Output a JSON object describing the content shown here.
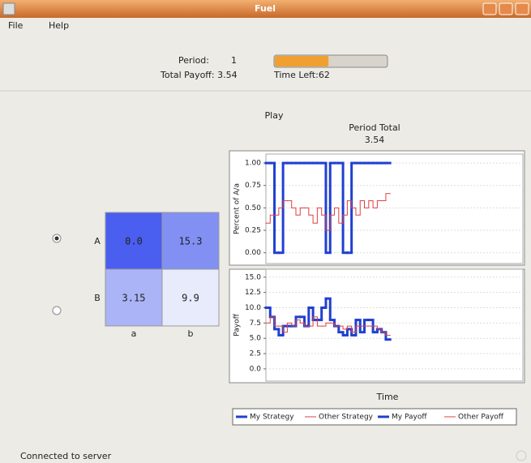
{
  "window": {
    "title": "Fuel"
  },
  "menu": [
    "File",
    "Help"
  ],
  "status": {
    "period_label": "Period:",
    "period": "1",
    "total_payoff": "Total Payoff: 3.54",
    "time_left": "Time Left:62",
    "progress": 0.48,
    "progress_color": "#f0a030"
  },
  "play": {
    "title": "Play",
    "period_total_label": "Period Total",
    "period_total": "3.54"
  },
  "matrix": {
    "rows": [
      "A",
      "B"
    ],
    "columns": [
      "a",
      "b"
    ],
    "cells": [
      [
        "0.0",
        "15.3"
      ],
      [
        "3.15",
        "9.9"
      ]
    ],
    "colors": [
      [
        "#4a5ef0",
        "#8290f4"
      ],
      [
        "#aab4f6",
        "#e8ebfc"
      ]
    ],
    "selected_row": 0
  },
  "chart_data": [
    {
      "type": "line",
      "step": true,
      "y_label": "Percent of A/a",
      "x": [
        0,
        2,
        4,
        6,
        8,
        10,
        12,
        14,
        16,
        18,
        20,
        22,
        24,
        26,
        28,
        30,
        32,
        34,
        36,
        38,
        40,
        42,
        44,
        46,
        48,
        50,
        52,
        54,
        56
      ],
      "xlim": [
        0,
        120
      ],
      "ylim": [
        -0.12,
        1.1
      ],
      "grid": true,
      "yticks": [
        {
          "value": 0,
          "label": "0.00"
        },
        {
          "value": 0.25,
          "label": "0.25"
        },
        {
          "value": 0.5,
          "label": "0.50"
        },
        {
          "value": 0.75,
          "label": "0.75"
        },
        {
          "value": 1,
          "label": "1.00"
        }
      ],
      "series": [
        {
          "name": "My Strategy",
          "color": "#2040d0",
          "width": 3,
          "values": [
            1,
            1,
            0,
            0,
            1,
            1,
            1,
            1,
            1,
            1,
            1,
            1,
            1,
            1,
            0,
            1,
            1,
            1,
            0,
            0,
            1,
            1,
            1,
            1,
            1,
            1,
            1,
            1,
            1
          ]
        },
        {
          "name": "Other Strategy",
          "color": "#e04040",
          "width": 1,
          "values": [
            0.33,
            0.42,
            0.42,
            0.5,
            0.58,
            0.58,
            0.5,
            0.42,
            0.5,
            0.5,
            0.42,
            0.33,
            0.5,
            0.42,
            0.25,
            0.42,
            0.5,
            0.33,
            0.42,
            0.58,
            0.5,
            0.42,
            0.58,
            0.5,
            0.58,
            0.5,
            0.58,
            0.58,
            0.66
          ]
        }
      ]
    },
    {
      "type": "line",
      "step": true,
      "y_label": "Payoff",
      "x_label": "Time",
      "x": [
        0,
        2,
        4,
        6,
        8,
        10,
        12,
        14,
        16,
        18,
        20,
        22,
        24,
        26,
        28,
        30,
        32,
        34,
        36,
        38,
        40,
        42,
        44,
        46,
        48,
        50,
        52,
        54,
        56
      ],
      "xlim": [
        0,
        120
      ],
      "ylim": [
        -2,
        16.3
      ],
      "grid": true,
      "yticks": [
        {
          "value": 0,
          "label": "0.0"
        },
        {
          "value": 2.5,
          "label": "2.5"
        },
        {
          "value": 5,
          "label": "5.0"
        },
        {
          "value": 7.5,
          "label": "7.5"
        },
        {
          "value": 10,
          "label": "10.0"
        },
        {
          "value": 12.5,
          "label": "12.5"
        },
        {
          "value": 15,
          "label": "15.0"
        }
      ],
      "series": [
        {
          "name": "My Payoff",
          "color": "#2040d0",
          "width": 3,
          "values": [
            10,
            8.5,
            6.5,
            5.5,
            7,
            7,
            7,
            8.5,
            8.5,
            7,
            10,
            8,
            8,
            10,
            11.5,
            8,
            7,
            6,
            5.5,
            6.5,
            5.5,
            8,
            6,
            8,
            8,
            6,
            6.5,
            6,
            4.8
          ]
        },
        {
          "name": "Other Payoff",
          "color": "#e04040",
          "width": 1,
          "values": [
            7.5,
            8.5,
            7,
            7,
            6,
            7.5,
            7,
            8,
            7.5,
            7,
            7,
            8.5,
            7,
            7,
            7.5,
            7.5,
            7,
            7,
            6.5,
            7,
            6,
            7,
            7,
            7,
            7,
            7,
            6.5,
            6,
            5.5
          ]
        }
      ]
    }
  ],
  "footer": "Connected to server"
}
